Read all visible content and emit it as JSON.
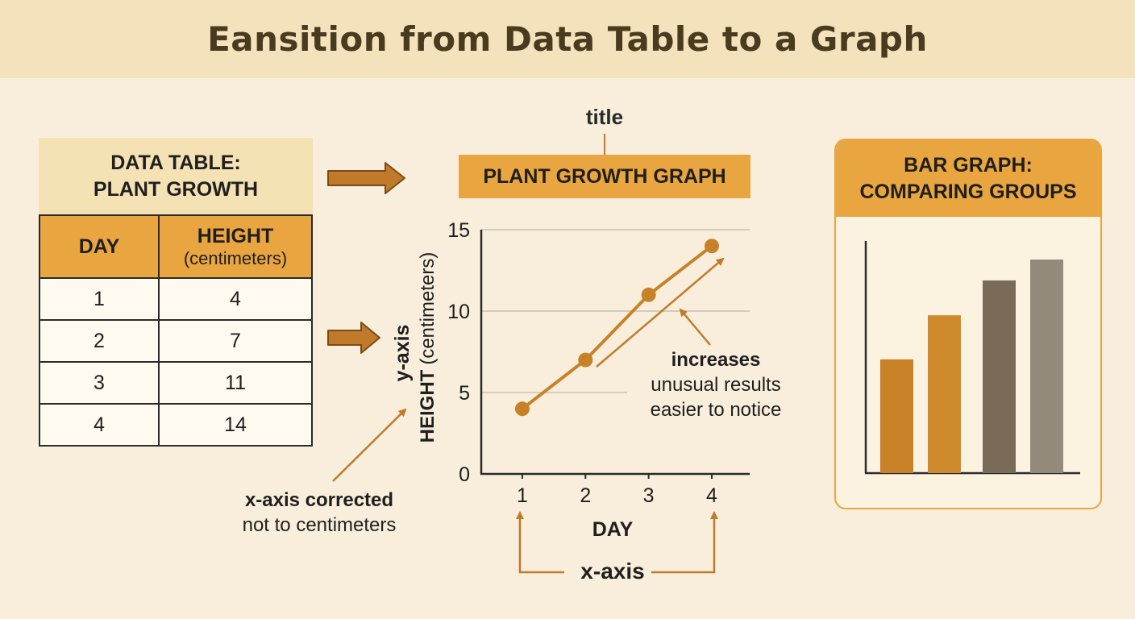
{
  "header": {
    "title": "Eansition from Data Table to a Graph"
  },
  "table": {
    "title_lines": [
      "DATA TABLE:",
      "PLANT GROWTH"
    ],
    "col_day": "DAY",
    "col_height": "HEIGHT",
    "col_height_unit": "(centimeters)",
    "rows": [
      {
        "day": "1",
        "height": "4"
      },
      {
        "day": "2",
        "height": "7"
      },
      {
        "day": "3",
        "height": "11"
      },
      {
        "day": "4",
        "height": "14"
      }
    ]
  },
  "graph": {
    "title_label": "title",
    "title": "PLANT GROWTH GRAPH",
    "y_axis_label": "y-axis",
    "y_title_bold": "HEIGHT",
    "y_title_unit": "(centimeters)",
    "x_title": "DAY",
    "x_axis_label": "x-axis",
    "y_ticks": [
      "0",
      "5",
      "10",
      "15"
    ],
    "x_ticks": [
      "1",
      "2",
      "3",
      "4"
    ]
  },
  "chart_data": {
    "type": "line",
    "title": "PLANT GROWTH GRAPH",
    "xlabel": "DAY",
    "ylabel": "HEIGHT (centimeters)",
    "x": [
      1,
      2,
      3,
      4
    ],
    "series": [
      {
        "values": [
          4,
          7,
          11,
          14
        ]
      }
    ],
    "ylim": [
      0,
      15
    ],
    "grid": true
  },
  "annotations": {
    "trend_bold": "increases",
    "trend_line1": "unusual results",
    "trend_line2": "easier to notice",
    "xaxis_bold": "x-axis corrected",
    "xaxis_line": "not to centimeters"
  },
  "bar_card": {
    "title_lines": [
      "BAR GRAPH:",
      "COMPARING GROUPS"
    ],
    "bar_levels": [
      0.49,
      0.68,
      0.83,
      0.92
    ],
    "bar_colors": [
      "#c98128",
      "#d08a2e",
      "#7a6a58",
      "#948a7c"
    ]
  },
  "colors": {
    "accent": "#e9a53f",
    "line": "#c98128",
    "arrow": "#c07a2a"
  }
}
